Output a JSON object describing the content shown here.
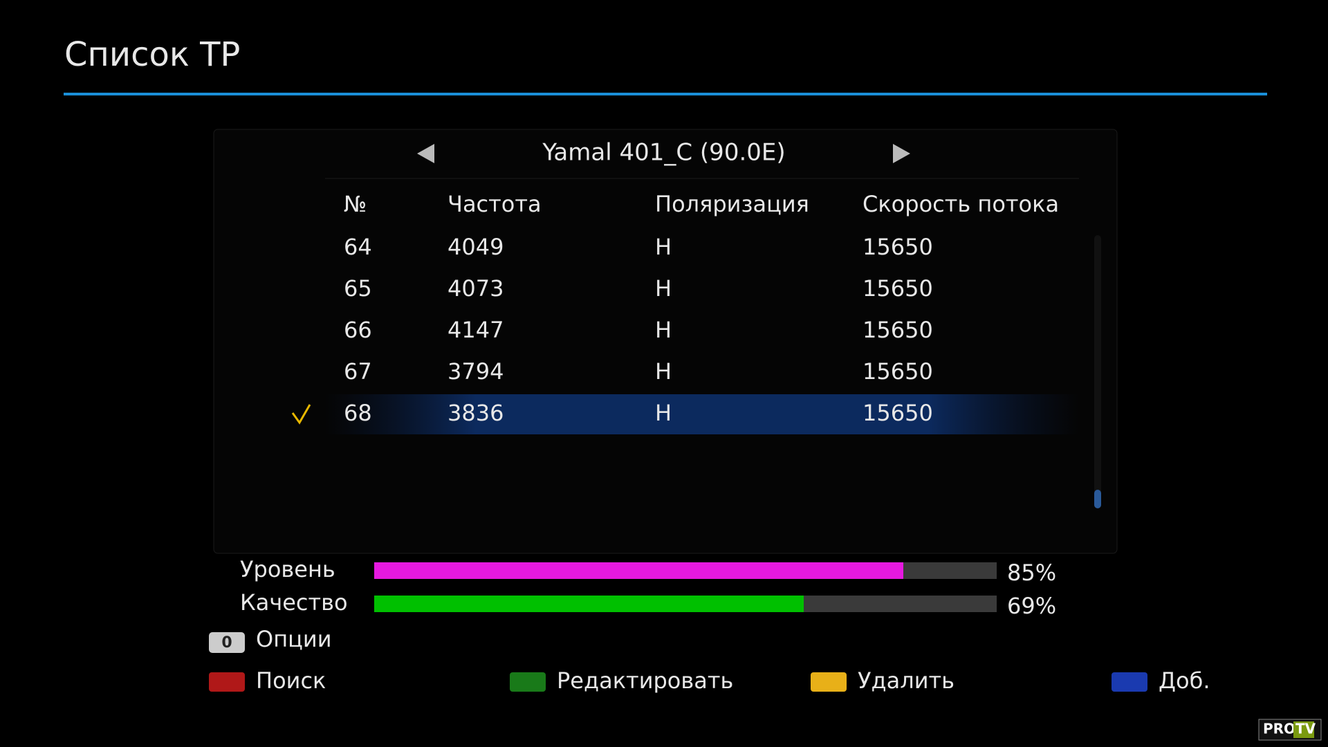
{
  "header": {
    "title": "Список TP"
  },
  "satellite": "Yamal 401_C (90.0E)",
  "table": {
    "columns": [
      "№",
      "Частота",
      "Поляризация",
      "Скорость потока"
    ],
    "rows": [
      [
        "64",
        "4049",
        "H",
        "15650"
      ],
      [
        "65",
        "4073",
        "H",
        "15650"
      ],
      [
        "66",
        "4147",
        "H",
        "15650"
      ],
      [
        "67",
        "3794",
        "H",
        "15650"
      ],
      [
        "68",
        "3836",
        "H",
        "15650"
      ]
    ]
  },
  "signal": [
    {
      "label": "Уровень",
      "value": 85,
      "value_label": "85%",
      "color": "#e619e0"
    },
    {
      "label": "Качество",
      "value": 69,
      "value_label": "69%",
      "color": "#00c000"
    }
  ],
  "options": {
    "key": "0",
    "label": "Опции"
  },
  "buttons": [
    {
      "label": "Поиск",
      "color": "#b01818"
    },
    {
      "label": "Редактировать",
      "color": "#197a19"
    },
    {
      "label": "Удалить",
      "color": "#e8b018"
    },
    {
      "label": "Доб.",
      "color": "#1a3ab0"
    }
  ],
  "watermark": {
    "left": "PRO",
    "right": "TV"
  }
}
